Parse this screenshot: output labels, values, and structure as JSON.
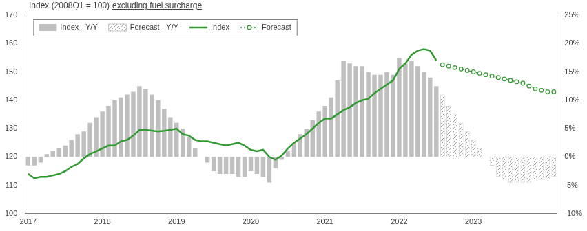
{
  "chart_data": {
    "type": "bar",
    "title": "Index (2008Q1 = 100)",
    "subtitle": "excluding fuel surcharge",
    "categories": [
      "2017",
      null,
      null,
      null,
      null,
      null,
      null,
      null,
      null,
      null,
      null,
      null,
      "2018",
      null,
      null,
      null,
      null,
      null,
      null,
      null,
      null,
      null,
      null,
      null,
      "2019",
      null,
      null,
      null,
      null,
      null,
      null,
      null,
      null,
      null,
      null,
      null,
      "2020",
      null,
      null,
      null,
      null,
      null,
      null,
      null,
      null,
      null,
      null,
      null,
      "2021",
      null,
      null,
      null,
      null,
      null,
      null,
      null,
      null,
      null,
      null,
      null,
      "2022",
      null,
      null,
      null,
      null,
      null,
      null,
      null,
      null,
      null,
      null,
      null,
      "2023",
      null,
      null,
      null,
      null,
      null,
      null,
      null,
      null,
      null,
      null,
      null,
      null,
      null
    ],
    "series": [
      {
        "name": "Index - Y/Y",
        "type": "bar",
        "axis": "y2",
        "color": "#bfbfbf",
        "values": [
          -1.5,
          -1.5,
          -1,
          0.5,
          1,
          1.5,
          2,
          3,
          4,
          4.5,
          6,
          7,
          8,
          9,
          10,
          10.5,
          11,
          11.5,
          12.5,
          12,
          11,
          10,
          8.5,
          7,
          6,
          5,
          3.5,
          1.5,
          0,
          -1,
          -2.5,
          -3,
          -3,
          -3,
          -3.5,
          -3.5,
          -2.5,
          -3,
          -3.5,
          -4.5,
          -2,
          -0.5,
          1,
          2.5,
          4,
          5,
          6.5,
          8,
          9,
          10.5,
          13.5,
          17,
          16.5,
          16,
          16,
          15,
          14.5,
          14.5,
          15,
          14.5,
          17.5,
          16.5,
          17,
          16,
          15,
          14,
          12.5,
          null,
          null,
          null,
          null,
          null,
          null,
          null,
          null,
          null,
          null,
          null,
          null,
          null,
          null,
          null,
          null,
          null,
          null,
          null
        ]
      },
      {
        "name": "Forecast - Y/Y",
        "type": "bar",
        "axis": "y2",
        "color": "#a6a6a6",
        "line_style": "hatched",
        "values": [
          null,
          null,
          null,
          null,
          null,
          null,
          null,
          null,
          null,
          null,
          null,
          null,
          null,
          null,
          null,
          null,
          null,
          null,
          null,
          null,
          null,
          null,
          null,
          null,
          null,
          null,
          null,
          null,
          null,
          null,
          null,
          null,
          null,
          null,
          null,
          null,
          null,
          null,
          null,
          null,
          null,
          null,
          null,
          null,
          null,
          null,
          null,
          null,
          null,
          null,
          null,
          null,
          null,
          null,
          null,
          null,
          null,
          null,
          null,
          null,
          null,
          null,
          null,
          null,
          null,
          null,
          null,
          11,
          9,
          7.5,
          6,
          4.5,
          3,
          1.5,
          0,
          -1.5,
          -3.5,
          -4,
          -4.5,
          -4.5,
          -4.5,
          -4.5,
          -4,
          -4,
          -4,
          -3.5
        ]
      },
      {
        "name": "Index",
        "type": "line",
        "color": "#339933",
        "values": [
          114,
          112.5,
          113,
          113,
          113.5,
          114,
          115,
          116.5,
          117.5,
          119.5,
          121,
          122,
          123,
          124,
          124,
          125.5,
          126,
          127.5,
          129.5,
          129.5,
          129.3,
          129,
          129.2,
          129.5,
          130,
          128,
          127.5,
          126,
          125.5,
          125.5,
          125,
          124.5,
          124,
          124.5,
          125,
          124,
          122.5,
          122,
          122.5,
          120,
          119,
          120.5,
          123,
          125,
          126.5,
          128,
          130,
          132,
          133.5,
          133.5,
          135,
          136.5,
          137.5,
          139,
          140,
          140.5,
          142.5,
          144,
          145.5,
          147,
          151,
          153,
          156,
          157.5,
          158,
          157.5,
          154,
          null,
          null,
          null,
          null,
          null,
          null,
          null,
          null,
          null,
          null,
          null,
          null,
          null,
          null,
          null,
          null,
          null,
          null,
          null
        ]
      },
      {
        "name": "Forecast",
        "type": "line",
        "color": "#339933",
        "line_style": "dotted",
        "marker": "circle",
        "values": [
          null,
          null,
          null,
          null,
          null,
          null,
          null,
          null,
          null,
          null,
          null,
          null,
          null,
          null,
          null,
          null,
          null,
          null,
          null,
          null,
          null,
          null,
          null,
          null,
          null,
          null,
          null,
          null,
          null,
          null,
          null,
          null,
          null,
          null,
          null,
          null,
          null,
          null,
          null,
          null,
          null,
          null,
          null,
          null,
          null,
          null,
          null,
          null,
          null,
          null,
          null,
          null,
          null,
          null,
          null,
          null,
          null,
          null,
          null,
          null,
          null,
          null,
          null,
          null,
          null,
          null,
          null,
          152.5,
          152,
          151.5,
          151,
          150.5,
          150,
          149.5,
          149,
          148.5,
          148,
          147.5,
          147,
          146.5,
          146,
          145,
          144,
          143.5,
          143,
          143
        ]
      }
    ],
    "ylim": [
      100,
      170
    ],
    "yticks": [
      100,
      110,
      120,
      130,
      140,
      150,
      160,
      170
    ],
    "y2lim": [
      -10,
      25
    ],
    "y2ticks": [
      {
        "value": -10,
        "label": "-10%"
      },
      {
        "value": -5,
        "label": "-5%"
      },
      {
        "value": 0,
        "label": "0%"
      },
      {
        "value": 5,
        "label": "5%"
      },
      {
        "value": 10,
        "label": "10%"
      },
      {
        "value": 15,
        "label": "15%"
      },
      {
        "value": 20,
        "label": "20%"
      },
      {
        "value": 25,
        "label": "25%"
      }
    ],
    "grid": false,
    "legend": "upper left"
  }
}
